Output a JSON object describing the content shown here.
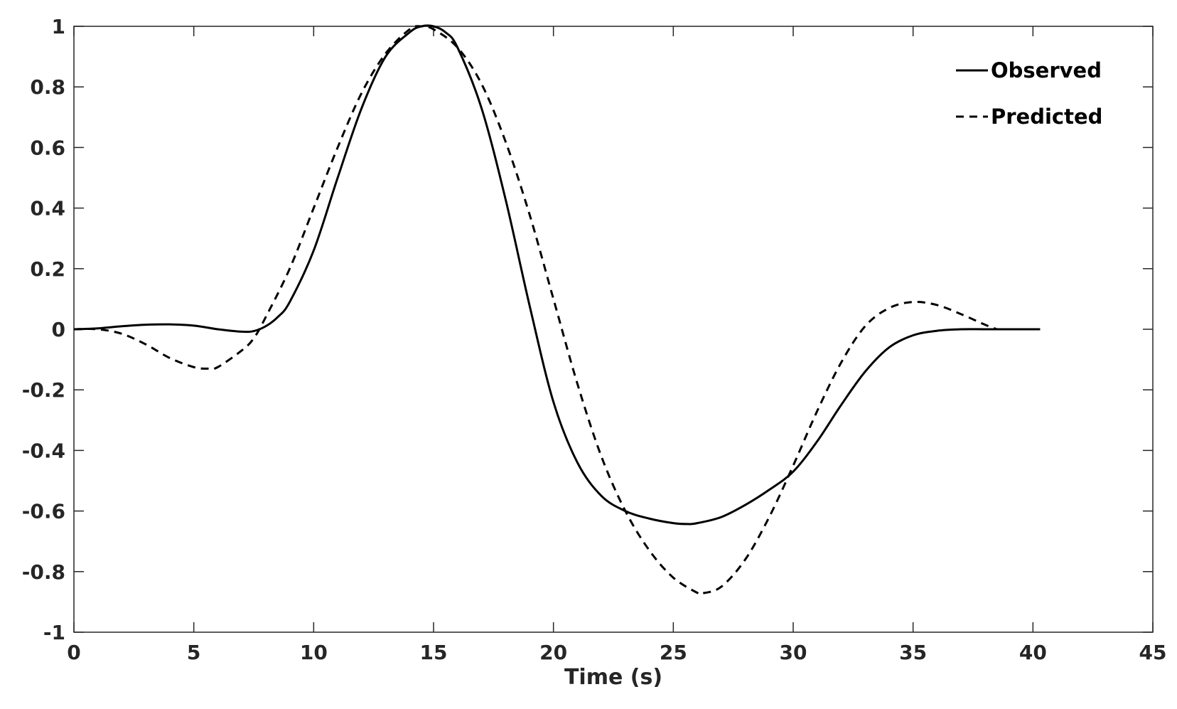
{
  "chart_data": {
    "type": "line",
    "title": "",
    "xlabel": "Time (s)",
    "ylabel": "",
    "xlim": [
      0,
      45
    ],
    "ylim": [
      -1,
      1
    ],
    "xticks": [
      0,
      5,
      10,
      15,
      20,
      25,
      30,
      35,
      40,
      45
    ],
    "yticks": [
      1,
      0.8,
      0.6,
      0.4,
      0.2,
      0,
      -0.2,
      -0.4,
      -0.6,
      -0.8,
      -1
    ],
    "xtick_labels": [
      "0",
      "5",
      "10",
      "15",
      "20",
      "25",
      "30",
      "35",
      "40",
      "45"
    ],
    "ytick_labels": [
      "1",
      "0.8",
      "0.6",
      "0.4",
      "0.2",
      "0",
      "-0.2",
      "-0.4",
      "-0.6",
      "-0.8",
      "-1"
    ],
    "grid": false,
    "legend_position": "top-right",
    "series": [
      {
        "name": "Observed",
        "style": "solid",
        "color": "#000000",
        "x": [
          0,
          1,
          2,
          3,
          4,
          5,
          6,
          7,
          7.5,
          8,
          8.5,
          9,
          10,
          11,
          12,
          13,
          14,
          14.5,
          15,
          15.5,
          16,
          17,
          18,
          19,
          20,
          21,
          22,
          23,
          24,
          25,
          25.6,
          26,
          27,
          28,
          29,
          30,
          31,
          32,
          33,
          34,
          35,
          36,
          37,
          38,
          39,
          40,
          40.3
        ],
        "y": [
          0,
          0.003,
          0.01,
          0.015,
          0.016,
          0.012,
          0.0,
          -0.008,
          -0.006,
          0.01,
          0.04,
          0.09,
          0.26,
          0.5,
          0.73,
          0.9,
          0.98,
          1.0,
          1.0,
          0.98,
          0.93,
          0.73,
          0.43,
          0.08,
          -0.24,
          -0.44,
          -0.55,
          -0.6,
          -0.625,
          -0.64,
          -0.643,
          -0.64,
          -0.62,
          -0.58,
          -0.53,
          -0.47,
          -0.37,
          -0.25,
          -0.14,
          -0.06,
          -0.02,
          -0.005,
          0.0,
          0.0,
          0.0,
          0.0,
          0.0
        ]
      },
      {
        "name": "Predicted",
        "style": "dashed",
        "color": "#000000",
        "x": [
          0,
          1,
          2,
          3,
          4,
          5,
          5.6,
          6,
          7,
          7.5,
          8,
          9,
          10,
          11,
          12,
          13,
          14,
          14.5,
          15,
          16,
          17,
          18,
          19,
          20,
          21,
          22,
          23,
          24,
          25,
          26,
          26.2,
          27,
          28,
          29,
          30,
          31,
          32,
          33,
          34,
          35,
          36,
          37,
          38,
          38.5
        ],
        "y": [
          0,
          0.0,
          -0.015,
          -0.05,
          -0.095,
          -0.125,
          -0.13,
          -0.125,
          -0.07,
          -0.03,
          0.04,
          0.2,
          0.4,
          0.6,
          0.78,
          0.91,
          0.99,
          1.0,
          0.99,
          0.93,
          0.81,
          0.62,
          0.38,
          0.1,
          -0.18,
          -0.42,
          -0.6,
          -0.73,
          -0.82,
          -0.87,
          -0.872,
          -0.85,
          -0.76,
          -0.62,
          -0.45,
          -0.27,
          -0.11,
          0.01,
          0.07,
          0.09,
          0.08,
          0.05,
          0.015,
          0.0
        ]
      }
    ]
  }
}
